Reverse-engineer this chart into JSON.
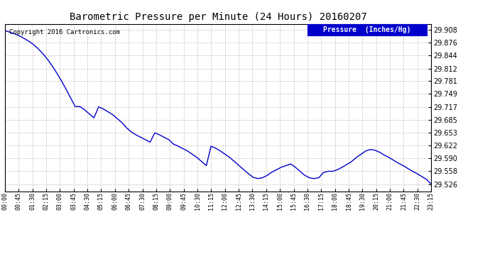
{
  "title": "Barometric Pressure per Minute (24 Hours) 20160207",
  "copyright": "Copyright 2016 Cartronics.com",
  "legend_label": "Pressure  (Inches/Hg)",
  "legend_bg": "#0000cc",
  "legend_fg": "#ffffff",
  "line_color": "#0000cc",
  "bg_color": "#ffffff",
  "grid_color": "#bbbbbb",
  "yticks": [
    29.526,
    29.558,
    29.59,
    29.622,
    29.653,
    29.685,
    29.717,
    29.749,
    29.781,
    29.812,
    29.844,
    29.876,
    29.908
  ],
  "ymin": 29.508,
  "ymax": 29.922,
  "xtick_labels": [
    "00:00",
    "00:45",
    "01:30",
    "02:15",
    "03:00",
    "03:45",
    "04:30",
    "05:15",
    "06:00",
    "06:45",
    "07:30",
    "08:15",
    "09:00",
    "09:45",
    "10:30",
    "11:15",
    "12:00",
    "12:45",
    "13:30",
    "14:15",
    "15:00",
    "15:45",
    "16:30",
    "17:15",
    "18:00",
    "18:45",
    "19:30",
    "20:15",
    "21:00",
    "21:45",
    "22:30",
    "23:15"
  ],
  "pressure_data": [
    29.905,
    29.902,
    29.898,
    29.893,
    29.887,
    29.88,
    29.872,
    29.862,
    29.85,
    29.836,
    29.82,
    29.802,
    29.783,
    29.762,
    29.74,
    29.718,
    29.718,
    29.71,
    29.7,
    29.69,
    29.717,
    29.712,
    29.705,
    29.698,
    29.688,
    29.678,
    29.665,
    29.655,
    29.648,
    29.642,
    29.636,
    29.63,
    29.653,
    29.648,
    29.642,
    29.636,
    29.625,
    29.62,
    29.614,
    29.608,
    29.6,
    29.592,
    29.582,
    29.572,
    29.62,
    29.615,
    29.608,
    29.6,
    29.592,
    29.582,
    29.572,
    29.562,
    29.552,
    29.543,
    29.54,
    29.542,
    29.548,
    29.556,
    29.562,
    29.568,
    29.572,
    29.576,
    29.568,
    29.558,
    29.548,
    29.542,
    29.54,
    29.542,
    29.555,
    29.558,
    29.558,
    29.562,
    29.568,
    29.575,
    29.582,
    29.592,
    29.6,
    29.608,
    29.612,
    29.61,
    29.605,
    29.598,
    29.592,
    29.585,
    29.578,
    29.572,
    29.565,
    29.558,
    29.552,
    29.545,
    29.538,
    29.526
  ]
}
